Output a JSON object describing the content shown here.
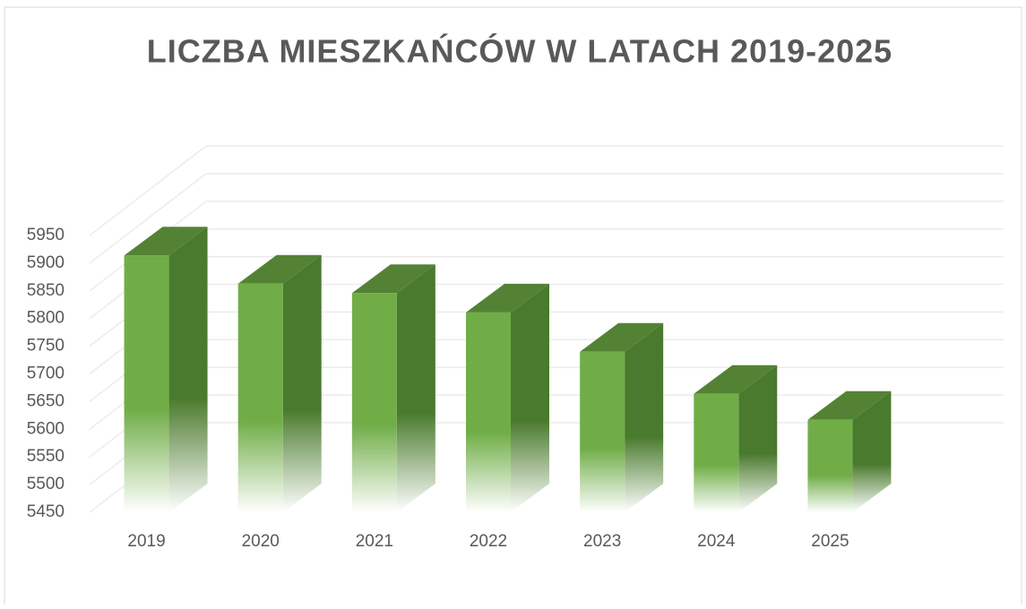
{
  "chart_data": {
    "type": "bar3d",
    "title": "LICZBA MIESZKAŃCÓW W LATACH 2019-2025",
    "categories": [
      "2019",
      "2020",
      "2021",
      "2022",
      "2023",
      "2024",
      "2025"
    ],
    "values": [
      5914,
      5863,
      5846,
      5811,
      5740,
      5664,
      5617
    ],
    "color": "#70ad47",
    "ylim": [
      5450,
      5950
    ],
    "yticks": [
      5450,
      5500,
      5550,
      5600,
      5650,
      5700,
      5750,
      5800,
      5850,
      5900,
      5950
    ],
    "grid": true
  }
}
